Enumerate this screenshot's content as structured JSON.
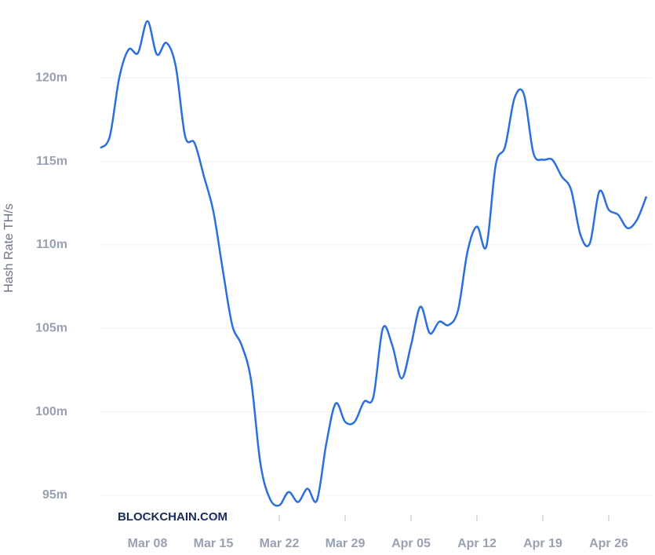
{
  "chart_data": {
    "type": "line",
    "y_label": "Hash Rate TH/s",
    "brand": "BLOCKCHAIN.COM",
    "x": [
      "Mar 03",
      "Mar 04",
      "Mar 05",
      "Mar 06",
      "Mar 07",
      "Mar 08",
      "Mar 09",
      "Mar 10",
      "Mar 11",
      "Mar 12",
      "Mar 13",
      "Mar 14",
      "Mar 15",
      "Mar 16",
      "Mar 17",
      "Mar 18",
      "Mar 19",
      "Mar 20",
      "Mar 21",
      "Mar 22",
      "Mar 23",
      "Mar 24",
      "Mar 25",
      "Mar 26",
      "Mar 27",
      "Mar 28",
      "Mar 29",
      "Mar 30",
      "Mar 31",
      "Apr 01",
      "Apr 02",
      "Apr 03",
      "Apr 04",
      "Apr 05",
      "Apr 06",
      "Apr 07",
      "Apr 08",
      "Apr 09",
      "Apr 10",
      "Apr 11",
      "Apr 12",
      "Apr 13",
      "Apr 14",
      "Apr 15",
      "Apr 16",
      "Apr 17",
      "Apr 18",
      "Apr 19",
      "Apr 20",
      "Apr 21",
      "Apr 22",
      "Apr 23",
      "Apr 24",
      "Apr 25",
      "Apr 26",
      "Apr 27",
      "Apr 28",
      "Apr 29",
      "Apr 30"
    ],
    "series": [
      {
        "name": "Hash Rate",
        "color": "#2a6fdb",
        "values": [
          115.8,
          116.5,
          120.0,
          121.7,
          121.5,
          123.4,
          121.4,
          122.1,
          120.7,
          116.5,
          116.1,
          114.1,
          112.0,
          108.5,
          105.2,
          104.0,
          101.9,
          96.9,
          94.8,
          94.4,
          95.2,
          94.6,
          95.4,
          94.7,
          98.1,
          100.5,
          99.4,
          99.4,
          100.6,
          100.9,
          105.0,
          104.0,
          102.0,
          104.0,
          106.3,
          104.7,
          105.4,
          105.2,
          106.1,
          109.6,
          111.1,
          109.9,
          114.8,
          115.9,
          118.8,
          119.0,
          115.5,
          115.1,
          115.1,
          114.1,
          113.3,
          110.6,
          110.1,
          113.2,
          112.1,
          111.8,
          111.0,
          111.5,
          112.9
        ]
      }
    ],
    "xticks": [
      "Mar 08",
      "Mar 15",
      "Mar 22",
      "Mar 29",
      "Apr 05",
      "Apr 12",
      "Apr 19",
      "Apr 26"
    ],
    "ylim": [
      94.2,
      124.1
    ],
    "yticks": [
      {
        "value": 95,
        "label": "95m"
      },
      {
        "value": 100,
        "label": "100m"
      },
      {
        "value": 105,
        "label": "105m"
      },
      {
        "value": 110,
        "label": "110m"
      },
      {
        "value": 115,
        "label": "115m"
      },
      {
        "value": 120,
        "label": "120m"
      }
    ],
    "grid": true
  }
}
